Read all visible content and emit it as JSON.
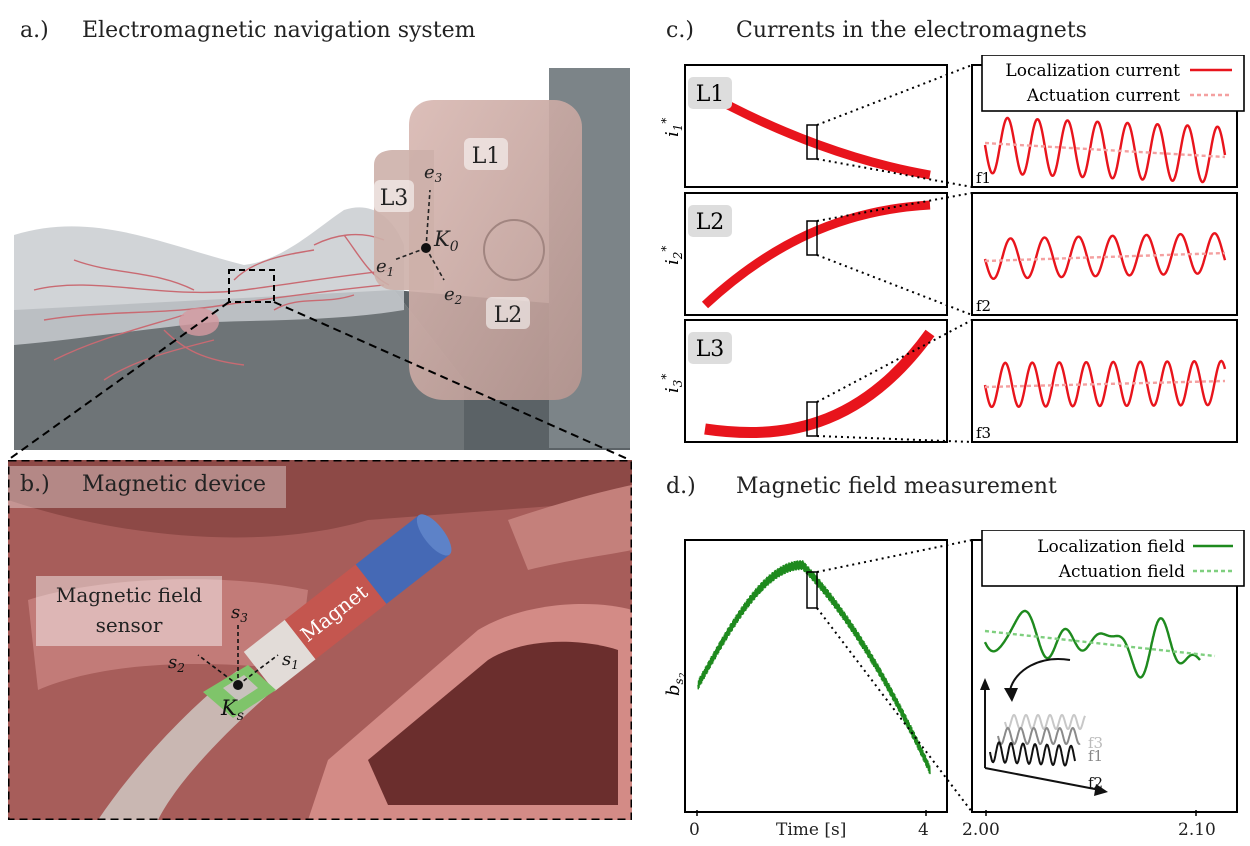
{
  "panel_a": {
    "label": "a.)",
    "title": "Electromagnetic navigation system",
    "coil_labels": [
      "L1",
      "L2",
      "L3"
    ],
    "frame": {
      "name": "K",
      "sub": "0"
    },
    "axes": [
      {
        "name": "e",
        "sub": "1"
      },
      {
        "name": "e",
        "sub": "2"
      },
      {
        "name": "e",
        "sub": "3"
      }
    ]
  },
  "panel_b": {
    "label": "b.)",
    "title": "Magnetic device",
    "sensor_label_line1": "Magnetic field",
    "sensor_label_line2": "sensor",
    "magnet_label": "Magnet",
    "frame": {
      "name": "K",
      "sub": "s"
    },
    "axes": [
      {
        "name": "s",
        "sub": "1"
      },
      {
        "name": "s",
        "sub": "2"
      },
      {
        "name": "s",
        "sub": "3"
      }
    ]
  },
  "panel_c": {
    "label": "c.)",
    "title": "Currents in the electromagnets",
    "legend": {
      "localization": "Localization current",
      "actuation": "Actuation current"
    },
    "rows": [
      {
        "coil": "L1",
        "ylabel_main": "i",
        "ylabel_sup": "*",
        "ylabel_sub": "1",
        "freq": "f1"
      },
      {
        "coil": "L2",
        "ylabel_main": "i",
        "ylabel_sup": "*",
        "ylabel_sub": "2",
        "freq": "f2"
      },
      {
        "coil": "L3",
        "ylabel_main": "i",
        "ylabel_sup": "*",
        "ylabel_sub": "3",
        "freq": "f3"
      }
    ],
    "colors": {
      "current": "#e8141c",
      "actuation": "#f4a0a0"
    }
  },
  "panel_d": {
    "label": "d.)",
    "title": "Magnetic field measurement",
    "legend": {
      "localization": "Localization field",
      "actuation": "Actuation field"
    },
    "ylabel_main": "b",
    "ylabel_sub": "s",
    "ylabel_subsub": "2",
    "xlabel": "Time [s]",
    "left_ticks": [
      "0",
      "4"
    ],
    "right_ticks": [
      "2.00",
      "2.10"
    ],
    "inset_freqs": [
      "f3",
      "f1",
      "f2"
    ],
    "colors": {
      "field": "#1e8a1e",
      "actuation": "#7fcf7f"
    }
  }
}
